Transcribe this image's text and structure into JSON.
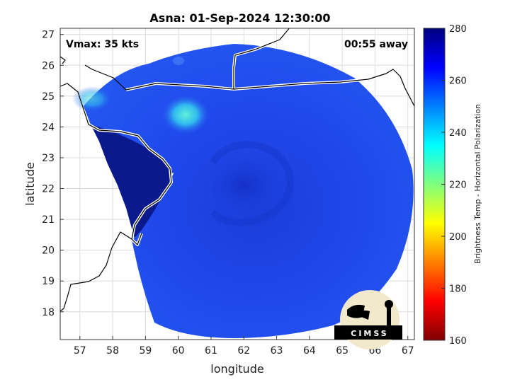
{
  "title": "Asna: 01-Sep-2024 12:30:00",
  "annotations": {
    "vmax": "Vmax: 35 kts",
    "away": "00:55 away"
  },
  "axes": {
    "xlabel": "longitude",
    "ylabel": "latitude",
    "xlim": [
      56.4,
      67.2
    ],
    "ylim": [
      17.1,
      27.2
    ],
    "xticks": [
      "57",
      "58",
      "59",
      "60",
      "61",
      "62",
      "63",
      "64",
      "65",
      "66",
      "67"
    ],
    "yticks": [
      "18",
      "19",
      "20",
      "21",
      "22",
      "23",
      "24",
      "25",
      "26",
      "27"
    ],
    "grid": true
  },
  "colorbar": {
    "label": "Brightness Temp - Horizontal Polarization",
    "range": [
      160,
      280
    ],
    "ticks": [
      "160",
      "180",
      "200",
      "220",
      "240",
      "260",
      "280"
    ],
    "colormap": "jet",
    "colors": [
      "#800000",
      "#ff0000",
      "#ff8000",
      "#ffff00",
      "#80ff80",
      "#00ffff",
      "#0080ff",
      "#0000ff",
      "#000080"
    ]
  },
  "map": {
    "swath_color": "#1a3fe0",
    "dark_region_color": "#0a1a8c",
    "warm_cell_color": "#40e0e0",
    "coastline_color": "#ffffff"
  },
  "logo": {
    "text": "CIMSS"
  }
}
